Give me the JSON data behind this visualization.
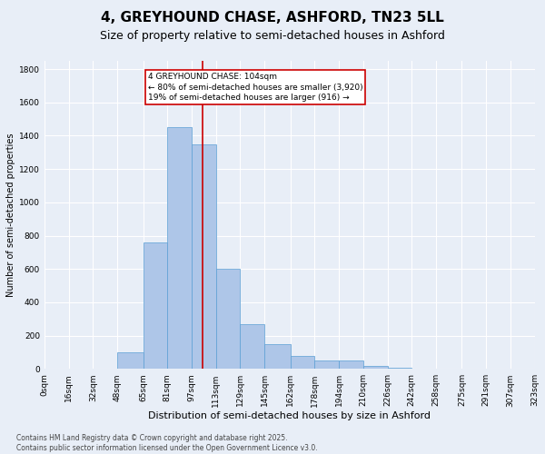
{
  "title1": "4, GREYHOUND CHASE, ASHFORD, TN23 5LL",
  "title2": "Size of property relative to semi-detached houses in Ashford",
  "xlabel": "Distribution of semi-detached houses by size in Ashford",
  "ylabel": "Number of semi-detached properties",
  "footnote": "Contains HM Land Registry data © Crown copyright and database right 2025.\nContains public sector information licensed under the Open Government Licence v3.0.",
  "bar_left_edges": [
    0,
    16,
    32,
    48,
    65,
    81,
    97,
    113,
    129,
    145,
    162,
    178,
    194,
    210,
    226,
    242,
    258,
    275,
    291,
    307
  ],
  "bar_widths": [
    16,
    16,
    16,
    17,
    16,
    16,
    16,
    16,
    16,
    17,
    16,
    16,
    16,
    16,
    16,
    16,
    17,
    16,
    16,
    16
  ],
  "bar_heights": [
    2,
    2,
    2,
    100,
    760,
    1450,
    1350,
    600,
    270,
    150,
    80,
    50,
    50,
    20,
    5,
    2,
    2,
    2,
    2,
    2
  ],
  "bar_color": "#aec6e8",
  "bar_edge_color": "#5a9fd4",
  "property_line_x": 104,
  "property_line_color": "#cc0000",
  "annotation_text": "4 GREYHOUND CHASE: 104sqm\n← 80% of semi-detached houses are smaller (3,920)\n19% of semi-detached houses are larger (916) →",
  "annotation_box_color": "#cc0000",
  "annotation_box_facecolor": "#ffffff",
  "ylim": [
    0,
    1850
  ],
  "yticks": [
    0,
    200,
    400,
    600,
    800,
    1000,
    1200,
    1400,
    1600,
    1800
  ],
  "xlim": [
    0,
    323
  ],
  "bg_color": "#e8eef7",
  "plot_bg_color": "#e8eef7",
  "grid_color": "#ffffff",
  "title1_fontsize": 11,
  "title2_fontsize": 9,
  "xlabel_fontsize": 8,
  "ylabel_fontsize": 7,
  "tick_fontsize": 6.5,
  "annotation_fontsize": 6.5,
  "footnote_fontsize": 5.5
}
